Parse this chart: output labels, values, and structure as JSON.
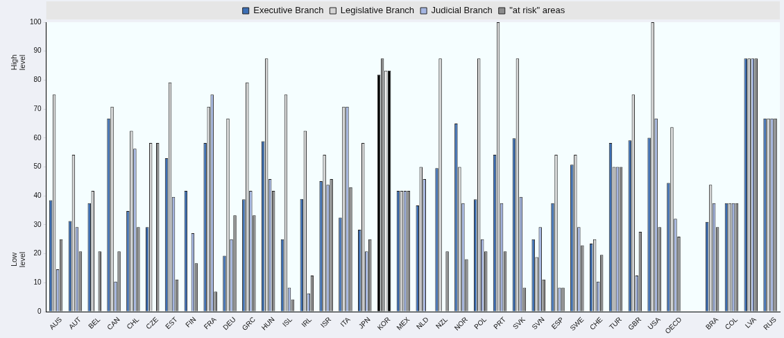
{
  "chart_data": {
    "type": "bar",
    "categories": [
      "AUS",
      "AUT",
      "BEL",
      "CAN",
      "CHL",
      "CZE",
      "EST",
      "FIN",
      "FRA",
      "DEU",
      "GRC",
      "HUN",
      "ISL",
      "IRL",
      "ISR",
      "ITA",
      "JPN",
      "KOR",
      "MEX",
      "NLD",
      "NZL",
      "NOR",
      "POL",
      "PRT",
      "SVK",
      "SVN",
      "ESP",
      "SWE",
      "CHE",
      "TUR",
      "GBR",
      "USA",
      "OECD",
      null,
      "BRA",
      "COL",
      "LVA",
      "RUS"
    ],
    "series": [
      {
        "name": "Executive Branch",
        "color": "#3d6fb4",
        "colors": [
          "#3d6fb4",
          "#3d6fb4",
          "#3d6fb4",
          "#3d6fb4",
          "#3d6fb4",
          "#3d6fb4",
          "#3d6fb4",
          "#3d6fb4",
          "#3d6fb4",
          "#3d6fb4",
          "#3d6fb4",
          "#3d6fb4",
          "#3d6fb4",
          "#3d6fb4",
          "#3d6fb4",
          "#3d6fb4",
          "#3d6fb4",
          "#000000",
          "#3d6fb4",
          "#3d6fb4",
          "#3d6fb4",
          "#3d6fb4",
          "#3d6fb4",
          "#3d6fb4",
          "#3d6fb4",
          "#3d6fb4",
          "#3d6fb4",
          "#3d6fb4",
          "#3d6fb4",
          "#3d6fb4",
          "#3d6fb4",
          "#3d6fb4",
          "#3d6fb4",
          "#3d6fb4",
          "#3d6fb4",
          "#3d6fb4",
          "#3d6fb4",
          "#3d6fb4"
        ],
        "values": [
          38.5,
          31.3,
          37.5,
          66.7,
          34.8,
          29.2,
          53,
          41.7,
          58.3,
          19.3,
          38.8,
          58.9,
          25,
          38.9,
          45.1,
          32.5,
          28.3,
          81.9,
          41.7,
          36.7,
          49.6,
          65,
          38.8,
          54.2,
          59.9,
          25,
          37.5,
          50.8,
          23.5,
          58.3,
          59.2,
          60.1,
          44.5,
          null,
          31,
          37.5,
          87.5,
          66.7
        ]
      },
      {
        "name": "Legislative Branch",
        "color": "#d4d4d4",
        "colors": [
          "#d4d4d4",
          "#d4d4d4",
          "#d4d4d4",
          "#d4d4d4",
          "#d4d4d4",
          "#d4d4d4",
          "#d4d4d4",
          "#d4d4d4",
          "#d4d4d4",
          "#d4d4d4",
          "#d4d4d4",
          "#d4d4d4",
          "#d4d4d4",
          "#d4d4d4",
          "#d4d4d4",
          "#d4d4d4",
          "#d4d4d4",
          "#8c8c8c",
          "#d4d4d4",
          "#d4d4d4",
          "#d4d4d4",
          "#d4d4d4",
          "#d4d4d4",
          "#d4d4d4",
          "#d4d4d4",
          "#d4d4d4",
          "#d4d4d4",
          "#d4d4d4",
          "#d4d4d4",
          "#d4d4d4",
          "#d4d4d4",
          "#d4d4d4",
          "#d4d4d4",
          "#d4d4d4",
          "#d4d4d4",
          "#d4d4d4",
          "#d4d4d4",
          "#d4d4d4"
        ],
        "values": [
          75,
          54.2,
          41.7,
          70.8,
          62.5,
          58.3,
          79.2,
          null,
          70.8,
          66.7,
          79.2,
          87.5,
          75,
          62.5,
          54.2,
          70.8,
          58.3,
          87.5,
          41.7,
          50,
          87.5,
          50,
          87.5,
          100,
          87.5,
          18.8,
          54.2,
          54.2,
          25,
          50,
          75,
          100,
          63.7,
          null,
          43.8,
          37.5,
          87.5,
          66.7
        ]
      },
      {
        "name": "Judicial Branch",
        "color": "#a5b6e2",
        "colors": [
          "#a5b6e2",
          "#a5b6e2",
          "#a5b6e2",
          "#a5b6e2",
          "#a5b6e2",
          "#a5b6e2",
          "#a5b6e2",
          "#a5b6e2",
          "#a5b6e2",
          "#a5b6e2",
          "#a5b6e2",
          "#a5b6e2",
          "#a5b6e2",
          "#a5b6e2",
          "#a5b6e2",
          "#a5b6e2",
          "#a5b6e2",
          "#ffffff",
          "#a5b6e2",
          "#a5b6e2",
          "#a5b6e2",
          "#a5b6e2",
          "#a5b6e2",
          "#a5b6e2",
          "#a5b6e2",
          "#a5b6e2",
          "#a5b6e2",
          "#a5b6e2",
          "#a5b6e2",
          "#a5b6e2",
          "#a5b6e2",
          "#a5b6e2",
          "#a5b6e2",
          "#a5b6e2",
          "#a5b6e2",
          "#a5b6e2",
          "#a5b6e2",
          "#a5b6e2"
        ],
        "values": [
          14.6,
          29.2,
          null,
          10.4,
          56.3,
          null,
          39.6,
          27.1,
          75,
          25,
          41.7,
          45.8,
          8.3,
          6.3,
          43.8,
          70.8,
          20.8,
          83.3,
          41.7,
          45.8,
          null,
          37.5,
          25,
          37.5,
          39.6,
          29.2,
          8.3,
          29.2,
          10.4,
          50,
          12.5,
          66.7,
          32.1,
          null,
          37.5,
          37.5,
          87.5,
          66.7
        ]
      },
      {
        "name": "\"at risk\" areas",
        "color": "#8c8c8c",
        "colors": [
          "#8c8c8c",
          "#8c8c8c",
          "#8c8c8c",
          "#8c8c8c",
          "#8c8c8c",
          "#8c8c8c",
          "#8c8c8c",
          "#8c8c8c",
          "#8c8c8c",
          "#8c8c8c",
          "#8c8c8c",
          "#8c8c8c",
          "#8c8c8c",
          "#8c8c8c",
          "#8c8c8c",
          "#8c8c8c",
          "#8c8c8c",
          "#000000",
          "#8c8c8c",
          "#8c8c8c",
          "#8c8c8c",
          "#8c8c8c",
          "#8c8c8c",
          "#8c8c8c",
          "#8c8c8c",
          "#8c8c8c",
          "#8c8c8c",
          "#8c8c8c",
          "#8c8c8c",
          "#8c8c8c",
          "#8c8c8c",
          "#8c8c8c",
          "#8c8c8c",
          "#8c8c8c",
          "#8c8c8c",
          "#8c8c8c",
          "#8c8c8c",
          "#8c8c8c"
        ],
        "values": [
          25,
          20.8,
          20.8,
          20.8,
          29.2,
          58.3,
          11.1,
          16.7,
          6.9,
          33.3,
          33.3,
          41.7,
          4.2,
          12.5,
          45.8,
          43,
          25,
          83.3,
          41.7,
          null,
          20.8,
          18.1,
          20.8,
          20.8,
          8.3,
          11.1,
          8.3,
          22.9,
          19.6,
          50,
          27.6,
          29.2,
          25.9,
          null,
          29.2,
          37.5,
          87.5,
          66.7
        ]
      }
    ],
    "ylim": [
      0,
      100
    ],
    "yticks": [
      0,
      10,
      20,
      30,
      40,
      50,
      60,
      70,
      80,
      90,
      100
    ],
    "annotations": [
      "High level",
      "Low level"
    ],
    "legend": "top",
    "grid": false
  }
}
